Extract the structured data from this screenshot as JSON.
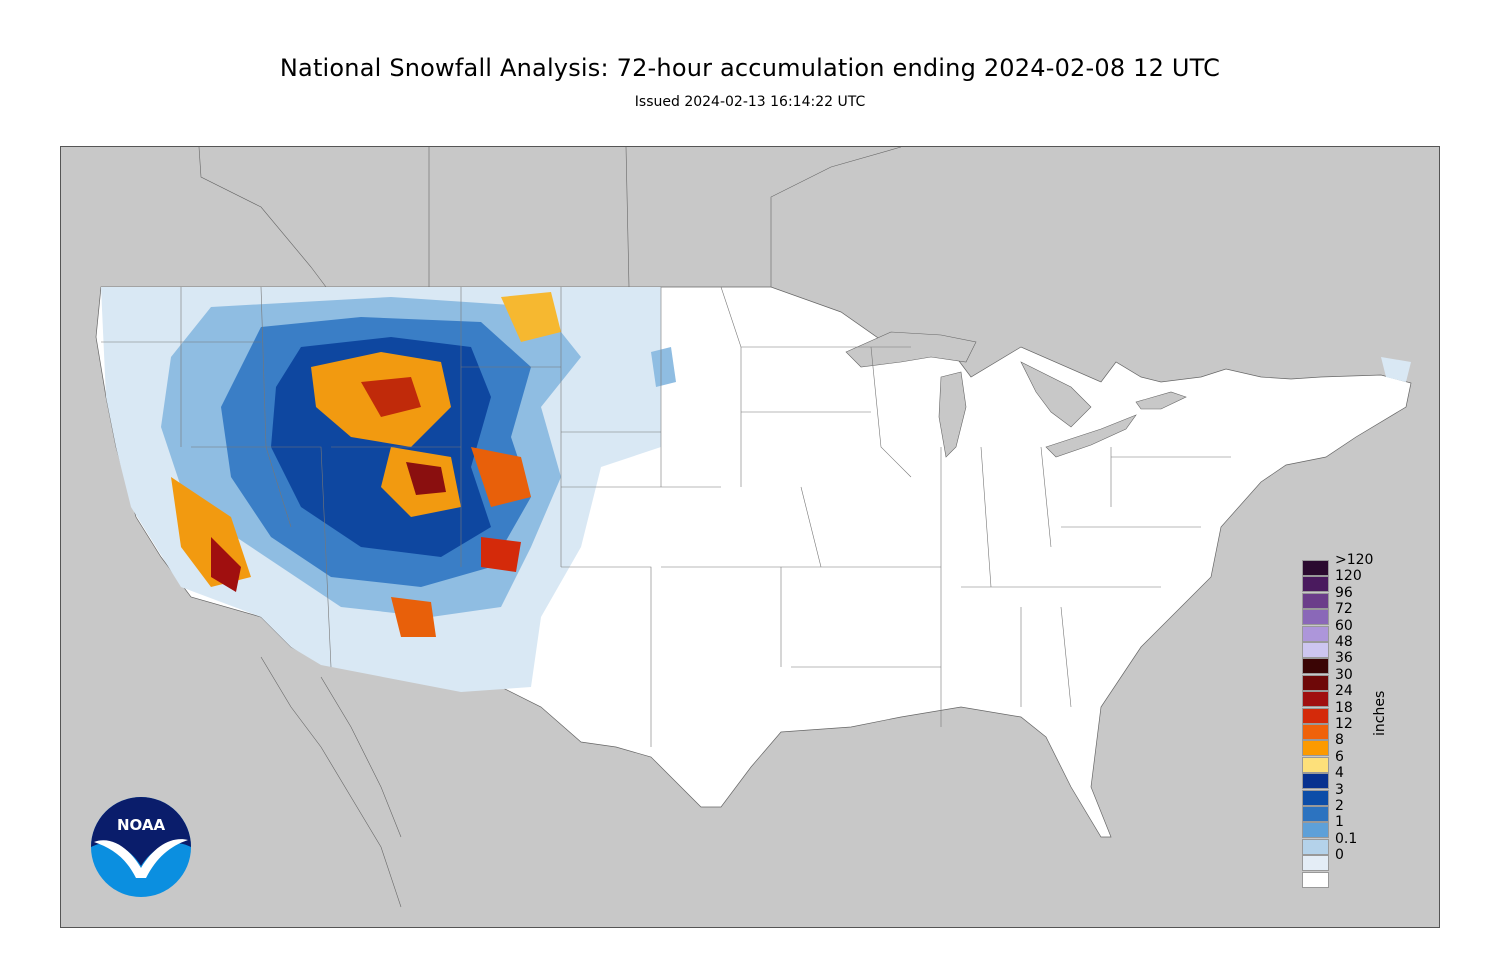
{
  "header": {
    "title": "National Snowfall Analysis: 72-hour accumulation ending 2024-02-08 12 UTC",
    "subtitle": "Issued 2024-02-13 16:14:22 UTC"
  },
  "map": {
    "background_color": "#c8c8c8",
    "land_color": "#ffffff",
    "water_color": "#c8c8c8",
    "border_color": "#666666"
  },
  "legend": {
    "units": "inches",
    "bins": [
      {
        "label": ">120",
        "color": "#2b0a2f"
      },
      {
        "label": "120",
        "color": "#4a1a5e"
      },
      {
        "label": "96",
        "color": "#6b3d8a"
      },
      {
        "label": "72",
        "color": "#8a68b8"
      },
      {
        "label": "60",
        "color": "#ad96da"
      },
      {
        "label": "48",
        "color": "#cdc6f0"
      },
      {
        "label": "36",
        "color": "#3a0505"
      },
      {
        "label": "30",
        "color": "#6e0808"
      },
      {
        "label": "24",
        "color": "#a00f0f"
      },
      {
        "label": "18",
        "color": "#d42a0a"
      },
      {
        "label": "12",
        "color": "#f0620a"
      },
      {
        "label": "8",
        "color": "#fc9a00"
      },
      {
        "label": "6",
        "color": "#fde07a"
      },
      {
        "label": "4",
        "color": "#08318f"
      },
      {
        "label": "3",
        "color": "#0c4da8"
      },
      {
        "label": "2",
        "color": "#2c73c0"
      },
      {
        "label": "1",
        "color": "#5ea0d8"
      },
      {
        "label": "0.1",
        "color": "#b4d2ea"
      },
      {
        "label": "0",
        "color": "#e4edf6"
      },
      {
        "label": "",
        "color": "#ffffff"
      }
    ]
  },
  "logo": {
    "text": "NOAA",
    "colors": {
      "top": "#0a1d6b",
      "bottom": "#0b8fe0",
      "bird": "#ffffff"
    }
  }
}
